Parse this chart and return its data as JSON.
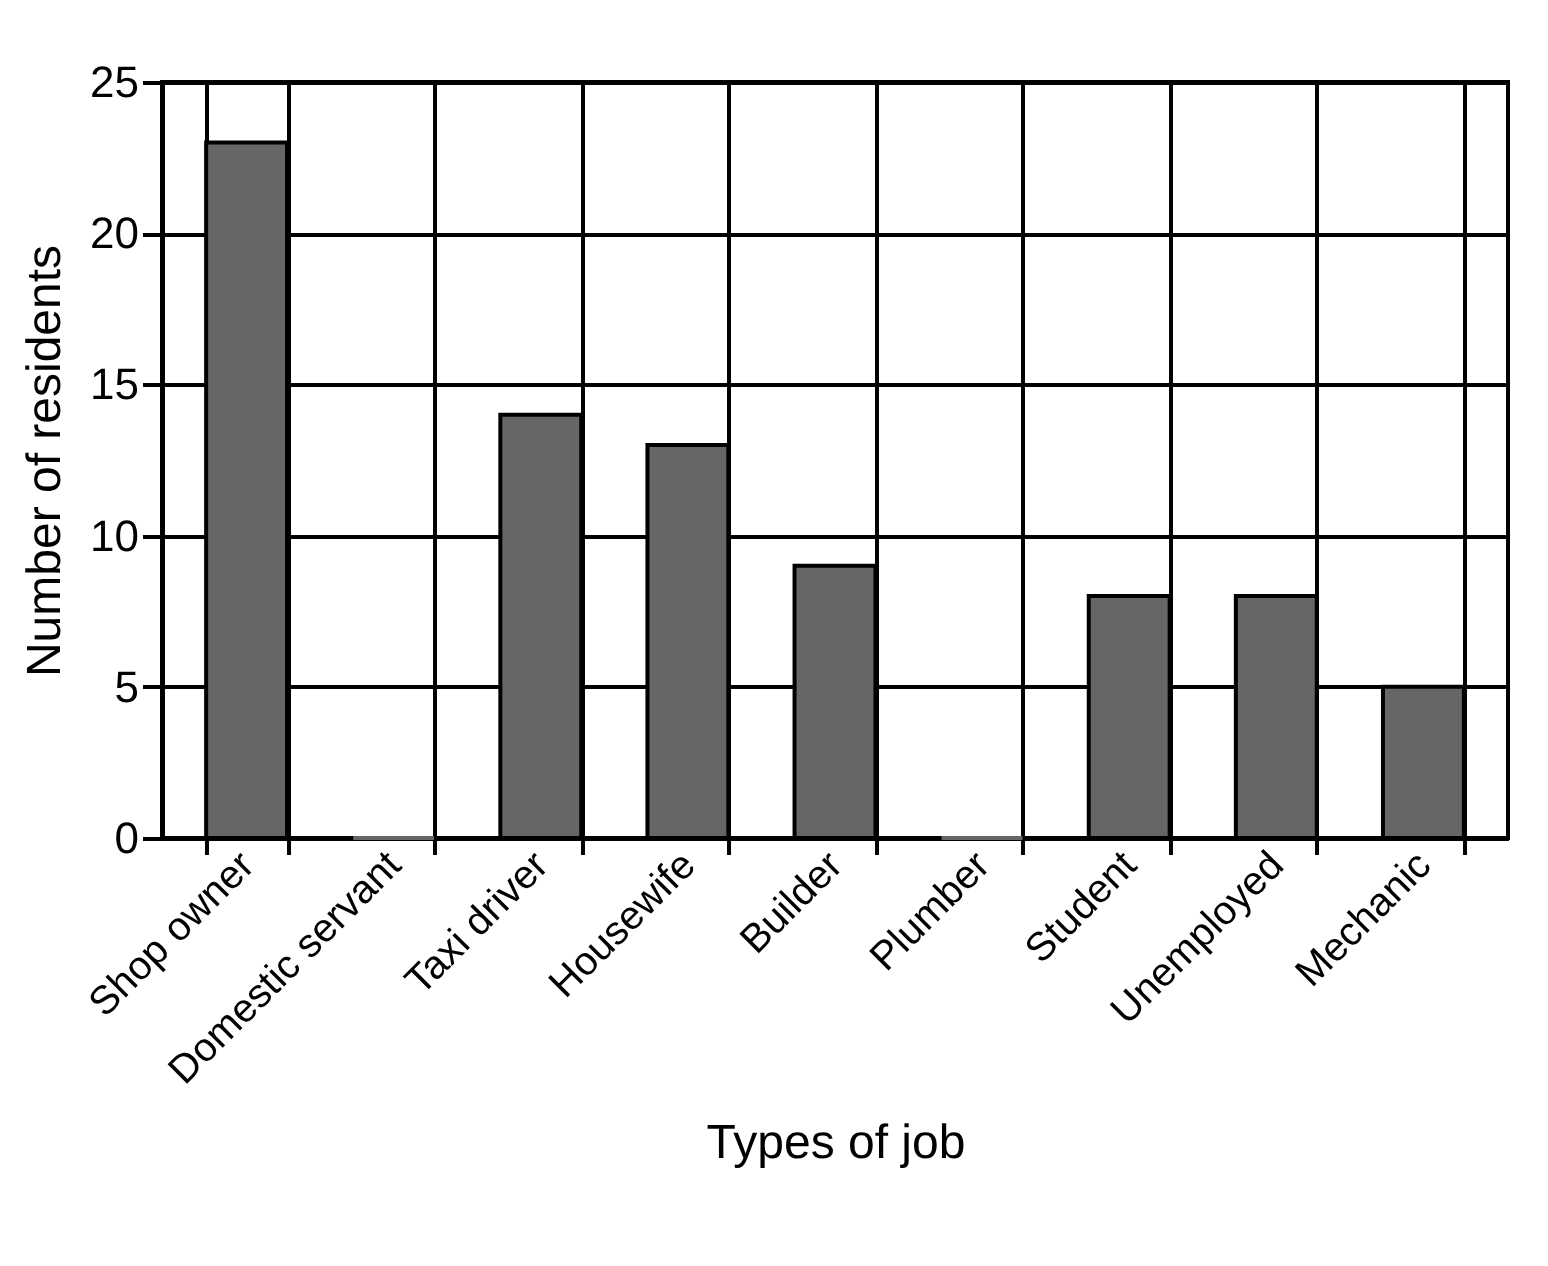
{
  "chart_data": {
    "type": "bar",
    "xlabel": "Types of job",
    "ylabel": "Number of residents",
    "categories": [
      "Shop owner",
      "Domestic servant",
      "Taxi driver",
      "Housewife",
      "Builder",
      "Plumber",
      "Student",
      "Unemployed",
      "Mechanic"
    ],
    "values": [
      23,
      0,
      14,
      13,
      9,
      0,
      8,
      8,
      5
    ],
    "color": "#666666",
    "ylim": [
      0,
      25
    ],
    "yticks": [
      0,
      5,
      10,
      15,
      20,
      25
    ],
    "grid": true
  }
}
